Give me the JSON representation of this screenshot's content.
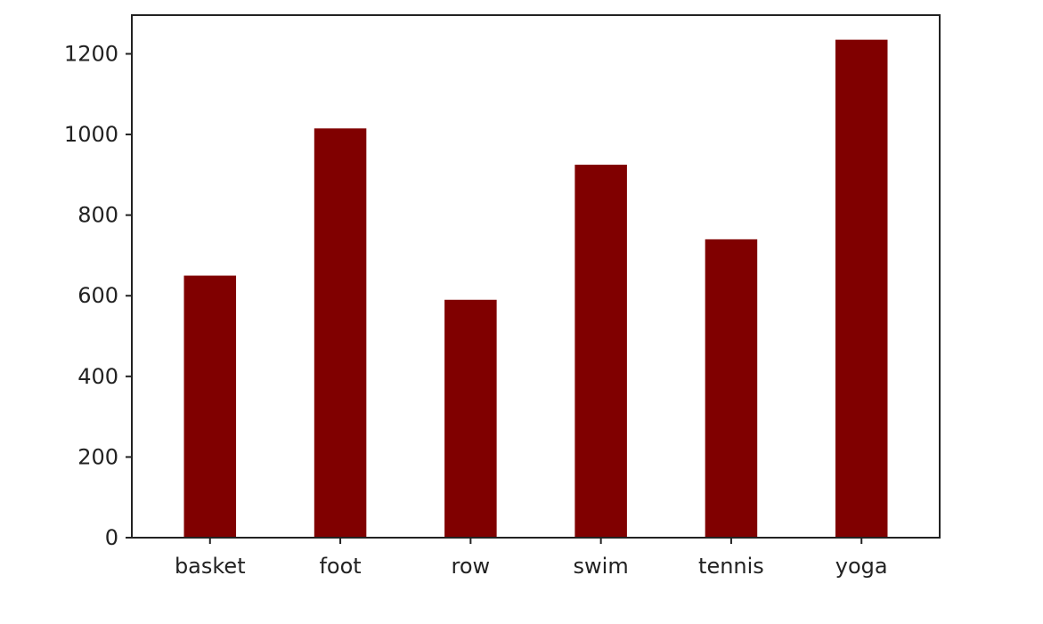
{
  "chart_data": {
    "type": "bar",
    "title": "",
    "xlabel": "",
    "ylabel": "",
    "categories": [
      "basket",
      "foot",
      "row",
      "swim",
      "tennis",
      "yoga"
    ],
    "values": [
      650,
      1015,
      590,
      925,
      740,
      1235
    ],
    "ylim": [
      0,
      1296
    ],
    "yticks": [
      0,
      200,
      400,
      600,
      800,
      1000,
      1200
    ],
    "grid": false,
    "bar_color": "#800000"
  }
}
